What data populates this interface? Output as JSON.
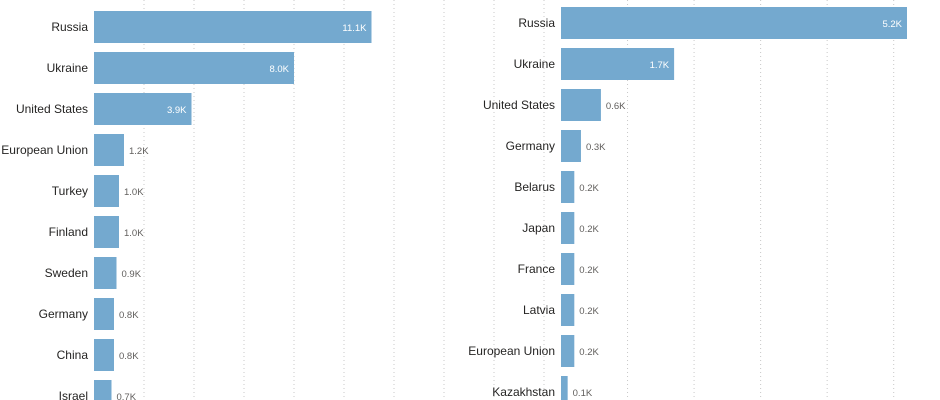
{
  "chart_data": [
    {
      "type": "bar",
      "orientation": "horizontal",
      "categories": [
        "Russia",
        "Ukraine",
        "United States",
        "European Union",
        "Turkey",
        "Finland",
        "Sweden",
        "Germany",
        "China",
        "Israel"
      ],
      "values": [
        11.1,
        8.0,
        3.9,
        1.2,
        1.0,
        1.0,
        0.9,
        0.8,
        0.8,
        0.7
      ],
      "value_labels": [
        "11.1K",
        "8.0K",
        "3.9K",
        "1.2K",
        "1.0K",
        "1.0K",
        "0.9K",
        "0.8K",
        "0.8K",
        "0.7K"
      ],
      "value_unit": "K",
      "xlim": [
        0,
        14
      ],
      "grid": true,
      "bar_color": "#74a9cf"
    },
    {
      "type": "bar",
      "orientation": "horizontal",
      "categories": [
        "Russia",
        "Ukraine",
        "United States",
        "Germany",
        "Belarus",
        "Japan",
        "France",
        "Latvia",
        "European Union",
        "Kazakhstan"
      ],
      "values": [
        5.2,
        1.7,
        0.6,
        0.3,
        0.2,
        0.2,
        0.2,
        0.2,
        0.2,
        0.1
      ],
      "value_labels": [
        "5.2K",
        "1.7K",
        "0.6K",
        "0.3K",
        "0.2K",
        "0.2K",
        "0.2K",
        "0.2K",
        "0.2K",
        "0.1K"
      ],
      "value_unit": "K",
      "xlim": [
        0,
        5.2
      ],
      "grid": true,
      "bar_color": "#74a9cf"
    }
  ]
}
